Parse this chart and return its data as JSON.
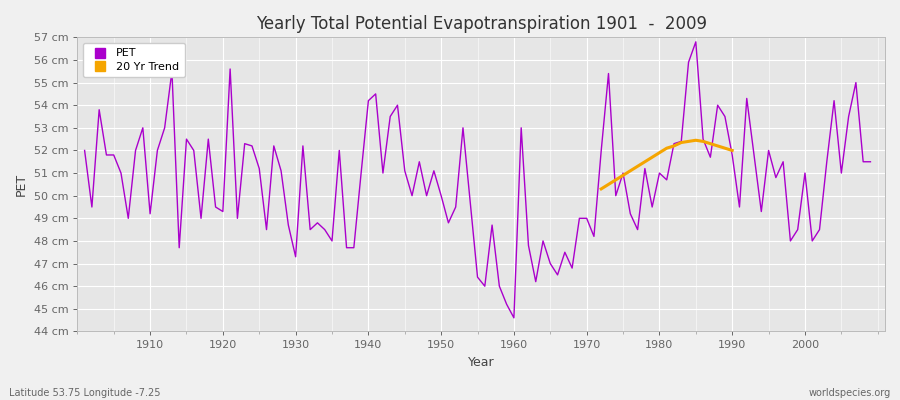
{
  "title": "Yearly Total Potential Evapotranspiration 1901  -  2009",
  "xlabel": "Year",
  "ylabel": "PET",
  "footnote_left": "Latitude 53.75 Longitude -7.25",
  "footnote_right": "worldspecies.org",
  "ylim": [
    44,
    57
  ],
  "ytick_labels": [
    "44 cm",
    "45 cm",
    "46 cm",
    "47 cm",
    "48 cm",
    "49 cm",
    "50 cm",
    "51 cm",
    "52 cm",
    "53 cm",
    "54 cm",
    "55 cm",
    "56 cm",
    "57 cm"
  ],
  "ytick_values": [
    44,
    45,
    46,
    47,
    48,
    49,
    50,
    51,
    52,
    53,
    54,
    55,
    56,
    57
  ],
  "pet_color": "#aa00cc",
  "trend_color": "#f5a500",
  "bg_color": "#f0f0f0",
  "plot_bg": "#e6e6e6",
  "grid_color": "#ffffff",
  "legend_labels": [
    "PET",
    "20 Yr Trend"
  ],
  "years": [
    1901,
    1902,
    1903,
    1904,
    1905,
    1906,
    1907,
    1908,
    1909,
    1910,
    1911,
    1912,
    1913,
    1914,
    1915,
    1916,
    1917,
    1918,
    1919,
    1920,
    1921,
    1922,
    1923,
    1924,
    1925,
    1926,
    1927,
    1928,
    1929,
    1930,
    1931,
    1932,
    1933,
    1934,
    1935,
    1936,
    1937,
    1938,
    1939,
    1940,
    1941,
    1942,
    1943,
    1944,
    1945,
    1946,
    1947,
    1948,
    1949,
    1950,
    1951,
    1952,
    1953,
    1954,
    1955,
    1956,
    1957,
    1958,
    1959,
    1960,
    1961,
    1962,
    1963,
    1964,
    1965,
    1966,
    1967,
    1968,
    1969,
    1970,
    1971,
    1972,
    1973,
    1974,
    1975,
    1976,
    1977,
    1978,
    1979,
    1980,
    1981,
    1982,
    1983,
    1984,
    1985,
    1986,
    1987,
    1988,
    1989,
    1990,
    1991,
    1992,
    1993,
    1994,
    1995,
    1996,
    1997,
    1998,
    1999,
    2000,
    2001,
    2002,
    2003,
    2004,
    2005,
    2006,
    2007,
    2008,
    2009
  ],
  "pet_values": [
    52.0,
    49.5,
    53.8,
    51.8,
    51.8,
    51.0,
    49.0,
    52.0,
    53.0,
    49.2,
    52.0,
    53.0,
    55.5,
    47.7,
    52.5,
    52.0,
    49.0,
    52.5,
    49.5,
    49.3,
    55.6,
    49.0,
    52.3,
    52.2,
    51.2,
    48.5,
    52.2,
    51.1,
    48.7,
    47.3,
    52.2,
    48.5,
    48.8,
    48.5,
    48.0,
    52.0,
    47.7,
    47.7,
    51.0,
    54.2,
    54.5,
    51.0,
    53.5,
    54.0,
    51.1,
    50.0,
    51.5,
    50.0,
    51.1,
    50.0,
    48.8,
    49.5,
    53.0,
    49.7,
    46.4,
    46.0,
    48.7,
    46.0,
    45.2,
    44.6,
    53.0,
    47.8,
    46.2,
    48.0,
    47.0,
    46.5,
    47.5,
    46.8,
    49.0,
    49.0,
    48.2,
    52.0,
    55.4,
    50.0,
    51.0,
    49.2,
    48.5,
    51.2,
    49.5,
    51.0,
    50.7,
    52.3,
    52.4,
    55.9,
    56.8,
    52.5,
    51.7,
    54.0,
    53.5,
    51.8,
    49.5,
    54.3,
    51.8,
    49.3,
    52.0,
    50.8,
    51.5,
    48.0,
    48.5,
    51.0,
    48.0,
    48.5,
    51.5,
    54.2,
    51.0,
    53.5,
    55.0,
    51.5,
    51.5
  ],
  "isolated_dot_year": 1937,
  "isolated_dot_value": 47.7,
  "trend_years": [
    1972,
    1973,
    1974,
    1975,
    1976,
    1977,
    1978,
    1979,
    1980,
    1981,
    1982,
    1983,
    1984,
    1985,
    1986,
    1987,
    1988,
    1989,
    1990
  ],
  "trend_values": [
    50.3,
    50.5,
    50.7,
    50.9,
    51.1,
    51.3,
    51.5,
    51.7,
    51.9,
    52.1,
    52.2,
    52.35,
    52.4,
    52.45,
    52.4,
    52.3,
    52.2,
    52.1,
    52.0
  ]
}
